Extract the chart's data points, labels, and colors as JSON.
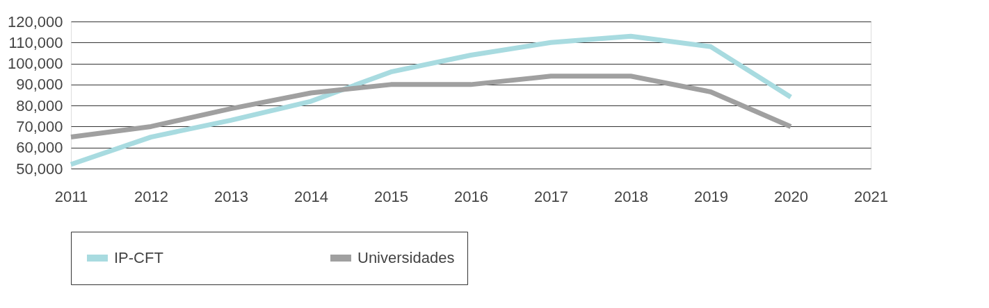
{
  "chart_data": {
    "type": "line",
    "categories": [
      "2011",
      "2012",
      "2013",
      "2014",
      "2015",
      "2016",
      "2017",
      "2018",
      "2019",
      "2020",
      "2021"
    ],
    "series": [
      {
        "name": "IP-CFT",
        "color": "#a8dbe0",
        "values": [
          52000,
          65000,
          73000,
          82000,
          96000,
          104000,
          110000,
          113000,
          108000,
          84000,
          null
        ]
      },
      {
        "name": "Universidades",
        "color": "#a0a0a0",
        "values": [
          65000,
          70000,
          78500,
          86000,
          90000,
          90000,
          94000,
          94000,
          86500,
          70000,
          null
        ]
      }
    ],
    "ylim": [
      50000,
      120000
    ],
    "yticks": [
      {
        "value": 50000,
        "label": "50,000"
      },
      {
        "value": 60000,
        "label": "60,000"
      },
      {
        "value": 70000,
        "label": "70,000"
      },
      {
        "value": 80000,
        "label": "80,000"
      },
      {
        "value": 90000,
        "label": "90,000"
      },
      {
        "value": 100000,
        "label": "100,000"
      },
      {
        "value": 110000,
        "label": "110,000"
      },
      {
        "value": 120000,
        "label": "120,000"
      }
    ],
    "grid": "y",
    "legend": "bottom",
    "marker": "none",
    "line_style": "solid"
  }
}
